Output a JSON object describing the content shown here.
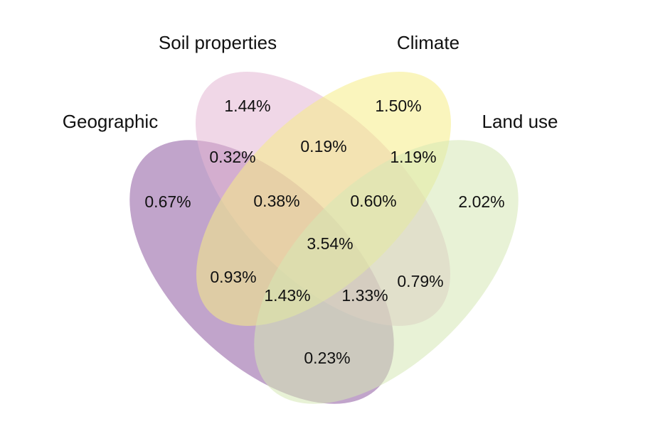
{
  "sets": [
    {
      "key": "geographic",
      "label": "Geographic",
      "color": "#8e5aa1"
    },
    {
      "key": "soil",
      "label": "Soil properties",
      "color": "#e4b7d3"
    },
    {
      "key": "climate",
      "label": "Climate",
      "color": "#f5ec86"
    },
    {
      "key": "landuse",
      "label": "Land use",
      "color": "#d6e8b4"
    }
  ],
  "regions": {
    "soil_only": "1.44%",
    "climate_only": "1.50%",
    "geo_only": "0.67%",
    "landuse_only": "2.02%",
    "geo_soil": "0.32%",
    "soil_climate": "0.19%",
    "climate_landuse": "1.19%",
    "geo_soil_climate": "0.38%",
    "soil_climate_landuse": "0.60%",
    "all_four": "3.54%",
    "geo_climate": "0.93%",
    "soil_landuse": "0.79%",
    "geo_climate_landuse": "1.43%",
    "geo_soil_landuse": "1.33%",
    "geo_landuse": "0.23%"
  }
}
